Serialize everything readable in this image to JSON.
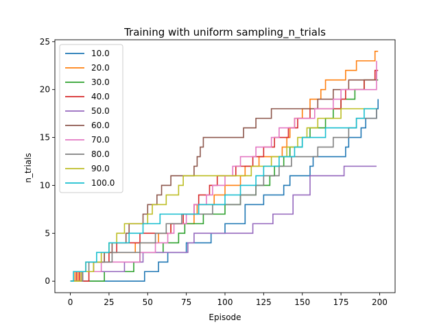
{
  "chart_data": {
    "type": "line",
    "title": "Training with uniform sampling_n_trials",
    "xlabel": "Episode",
    "ylabel": "n_trials",
    "xlim": [
      -10,
      210
    ],
    "ylim": [
      -1.2,
      25.2
    ],
    "xticks": [
      "0",
      "25",
      "50",
      "75",
      "100",
      "125",
      "150",
      "175",
      "200"
    ],
    "yticks": [
      "0",
      "5",
      "10",
      "15",
      "20",
      "25"
    ],
    "grid": false,
    "legend_position": "top-left",
    "series": [
      {
        "name": "10.0",
        "color": "#1f77b4",
        "x": [
          0,
          47,
          48,
          55,
          57,
          60,
          63,
          73,
          75,
          88,
          91,
          95,
          100,
          110,
          113,
          123,
          125,
          130,
          138,
          142,
          155,
          157,
          178,
          180,
          188,
          191,
          198,
          199
        ],
        "y": [
          0,
          0,
          1,
          1,
          2,
          2,
          3,
          3,
          4,
          4,
          5,
          5,
          6,
          6,
          8,
          8,
          9,
          9,
          10,
          11,
          12,
          13,
          14,
          15,
          16,
          17,
          18,
          19
        ]
      },
      {
        "name": "20.0",
        "color": "#ff7f0e",
        "x": [
          0,
          2,
          3,
          5,
          7,
          10,
          20,
          22,
          25,
          40,
          42,
          55,
          57,
          65,
          78,
          80,
          82,
          90,
          93,
          96,
          100,
          105,
          110,
          113,
          120,
          122,
          125,
          130,
          137,
          140,
          142,
          145,
          148,
          150,
          155,
          158,
          162,
          165,
          168,
          175,
          178,
          185,
          197,
          199
        ],
        "y": [
          0,
          0,
          1,
          0,
          1,
          2,
          2,
          3,
          3,
          3,
          4,
          4,
          5,
          6,
          6,
          7,
          8,
          8,
          9,
          9,
          10,
          10,
          11,
          12,
          12,
          13,
          13,
          13,
          14,
          15,
          16,
          17,
          17,
          18,
          19,
          19,
          20,
          21,
          21,
          21,
          22,
          23,
          24,
          24
        ]
      },
      {
        "name": "30.0",
        "color": "#2ca02c",
        "x": [
          0,
          20,
          22,
          38,
          41,
          45,
          54,
          60,
          63,
          70,
          74,
          83,
          86,
          90,
          95,
          100,
          104,
          107,
          110,
          117,
          120,
          126,
          129,
          132,
          135,
          138,
          142,
          147,
          150,
          155,
          162,
          165,
          168,
          170,
          172,
          175,
          180,
          184,
          190,
          199
        ],
        "y": [
          0,
          0,
          1,
          1,
          2,
          3,
          3,
          4,
          4,
          5,
          6,
          6,
          7,
          7,
          7,
          8,
          8,
          8,
          9,
          9,
          10,
          10,
          11,
          12,
          12,
          13,
          14,
          14,
          15,
          16,
          16,
          17,
          17,
          18,
          18,
          19,
          19,
          20,
          21,
          21
        ]
      },
      {
        "name": "40.0",
        "color": "#d62728",
        "x": [
          0,
          2,
          4,
          6,
          12,
          15,
          23,
          25,
          30,
          38,
          41,
          45,
          50,
          55,
          60,
          65,
          70,
          73,
          75,
          80,
          83,
          85,
          90,
          95,
          98,
          103,
          107,
          110,
          113,
          118,
          121,
          125,
          128,
          132,
          138,
          141,
          145,
          147,
          150,
          155,
          157,
          165,
          175,
          178,
          185,
          190,
          197,
          199
        ],
        "y": [
          0,
          0,
          1,
          0,
          1,
          2,
          2,
          3,
          4,
          4,
          4,
          5,
          5,
          5,
          5,
          6,
          6,
          7,
          7,
          8,
          9,
          9,
          10,
          11,
          11,
          11,
          12,
          12,
          12,
          13,
          13,
          14,
          14,
          15,
          15,
          16,
          16,
          17,
          17,
          18,
          18,
          18,
          19,
          20,
          20,
          21,
          22,
          22
        ]
      },
      {
        "name": "50.0",
        "color": "#9467bd",
        "x": [
          0,
          5,
          8,
          20,
          27,
          35,
          40,
          47,
          53,
          65,
          76,
          80,
          105,
          110,
          118,
          127,
          131,
          138,
          144,
          150,
          155,
          172,
          175,
          177,
          198
        ],
        "y": [
          0,
          0,
          1,
          1,
          1,
          2,
          2,
          3,
          3,
          3,
          4,
          5,
          5,
          5,
          6,
          6,
          7,
          7,
          9,
          9,
          11,
          11,
          11,
          12,
          12
        ]
      },
      {
        "name": "60.0",
        "color": "#8c564b",
        "x": [
          0,
          5,
          7,
          12,
          15,
          17,
          22,
          25,
          27,
          32,
          36,
          38,
          43,
          47,
          50,
          56,
          59,
          62,
          65,
          68,
          72,
          75,
          78,
          80,
          82,
          84,
          86,
          90,
          95,
          98,
          100,
          110,
          112,
          115,
          120,
          125,
          130,
          135,
          140,
          142,
          150,
          160,
          165,
          170,
          175,
          180,
          192,
          195,
          198
        ],
        "y": [
          0,
          0,
          1,
          1,
          2,
          2,
          3,
          3,
          4,
          4,
          5,
          6,
          6,
          7,
          8,
          9,
          10,
          10,
          11,
          11,
          11,
          11,
          11,
          12,
          13,
          14,
          15,
          15,
          15,
          15,
          15,
          15,
          16,
          16,
          17,
          17,
          18,
          18,
          18,
          18,
          18,
          19,
          19,
          20,
          20,
          21,
          21,
          21,
          22
        ]
      },
      {
        "name": "70.0",
        "color": "#e377c2",
        "x": [
          0,
          5,
          8,
          12,
          15,
          20,
          25,
          35,
          38,
          45,
          48,
          55,
          60,
          63,
          67,
          70,
          75,
          80,
          83,
          88,
          92,
          95,
          100,
          105,
          110,
          117,
          120,
          128,
          130,
          133,
          135,
          138,
          140,
          145,
          150,
          155,
          158,
          165,
          170,
          175,
          190,
          198
        ],
        "y": [
          0,
          0,
          1,
          1,
          1,
          2,
          2,
          2,
          2,
          3,
          3,
          4,
          4,
          5,
          6,
          6,
          7,
          8,
          8,
          9,
          10,
          10,
          11,
          12,
          13,
          13,
          14,
          14,
          15,
          15,
          16,
          16,
          16,
          17,
          17,
          17,
          18,
          18,
          19,
          20,
          20,
          23
        ]
      },
      {
        "name": "80.0",
        "color": "#7f7f7f",
        "x": [
          0,
          5,
          8,
          12,
          20,
          27,
          35,
          40,
          45,
          50,
          55,
          58,
          62,
          68,
          72,
          75,
          80,
          83,
          87,
          92,
          96,
          100,
          110,
          115,
          120,
          125,
          130,
          135,
          140,
          143,
          150,
          160,
          165,
          170,
          175,
          180,
          185,
          190,
          198
        ],
        "y": [
          0,
          0,
          1,
          2,
          2,
          3,
          3,
          3,
          4,
          4,
          5,
          5,
          6,
          6,
          7,
          7,
          7,
          7,
          7,
          8,
          8,
          8,
          9,
          9,
          10,
          11,
          11,
          12,
          12,
          13,
          13,
          14,
          14,
          15,
          15,
          16,
          17,
          17,
          18
        ]
      },
      {
        "name": "90.0",
        "color": "#bcbd22",
        "x": [
          0,
          5,
          7,
          10,
          15,
          20,
          25,
          30,
          35,
          38,
          40,
          45,
          50,
          53,
          58,
          62,
          67,
          70,
          73,
          75,
          83,
          90,
          95,
          100,
          107,
          110,
          115,
          117,
          123,
          127,
          130,
          135,
          140,
          147,
          153,
          156,
          160,
          167,
          170,
          175,
          185,
          198
        ],
        "y": [
          0,
          0,
          1,
          1,
          2,
          3,
          4,
          5,
          6,
          6,
          6,
          6,
          7,
          8,
          8,
          9,
          9,
          10,
          11,
          11,
          11,
          11,
          11,
          11,
          11,
          11,
          11,
          12,
          12,
          12,
          13,
          13,
          14,
          15,
          16,
          16,
          17,
          17,
          17,
          18,
          18,
          18
        ]
      },
      {
        "name": "100.0",
        "color": "#17becf",
        "x": [
          0,
          2,
          4,
          6,
          10,
          15,
          17,
          20,
          25,
          30,
          33,
          38,
          42,
          47,
          50,
          55,
          58,
          62,
          68,
          75,
          80,
          83,
          88,
          93,
          97,
          100,
          105,
          110,
          115,
          120,
          125,
          130,
          135,
          140,
          145,
          150,
          155,
          160,
          165,
          170,
          180,
          185,
          190,
          198
        ],
        "y": [
          0,
          1,
          1,
          1,
          2,
          2,
          3,
          3,
          4,
          4,
          4,
          5,
          5,
          6,
          6,
          6,
          7,
          7,
          7,
          7,
          7,
          8,
          8,
          8,
          8,
          9,
          9,
          10,
          10,
          11,
          12,
          12,
          13,
          13,
          14,
          15,
          15,
          15,
          16,
          16,
          16,
          17,
          18,
          18
        ]
      }
    ]
  }
}
